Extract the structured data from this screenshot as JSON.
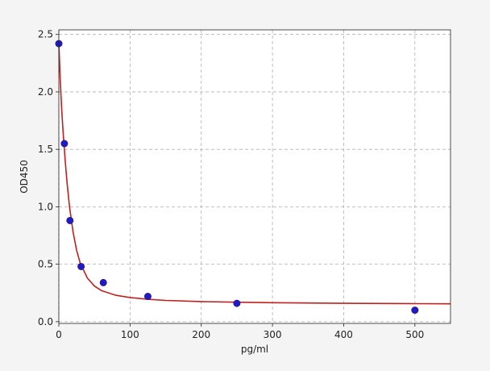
{
  "chart_data": {
    "type": "scatter",
    "x_label": "pg/ml",
    "y_label": "OD450",
    "xlim": [
      0,
      550
    ],
    "ylim": [
      -0.015,
      2.54
    ],
    "xticks": [
      0,
      100,
      200,
      300,
      400,
      500
    ],
    "yticks": [
      {
        "value": 0,
        "label": "0.0"
      },
      0.5,
      {
        "value": 1,
        "label": "1.0"
      },
      1.5,
      {
        "value": 2,
        "label": "2.0"
      },
      2.5
    ],
    "grid": true,
    "points": {
      "color": "#1a1ad0",
      "edge_color": "#3a1a7a",
      "x": [
        0,
        7.8,
        15.6,
        31.25,
        62.5,
        125,
        250,
        500
      ],
      "values": [
        2.42,
        1.55,
        0.88,
        0.48,
        0.34,
        0.22,
        0.16,
        0.1
      ]
    },
    "curve": {
      "color": "#c0201f",
      "x": [
        0,
        2,
        4,
        6,
        8,
        10,
        12,
        15,
        20,
        25,
        30,
        40,
        50,
        60,
        80,
        100,
        125,
        150,
        200,
        250,
        300,
        400,
        500,
        550
      ],
      "values": [
        2.42,
        2.1,
        1.85,
        1.65,
        1.48,
        1.32,
        1.18,
        1.0,
        0.78,
        0.62,
        0.51,
        0.38,
        0.31,
        0.27,
        0.23,
        0.21,
        0.195,
        0.185,
        0.175,
        0.17,
        0.165,
        0.16,
        0.157,
        0.156
      ]
    }
  }
}
